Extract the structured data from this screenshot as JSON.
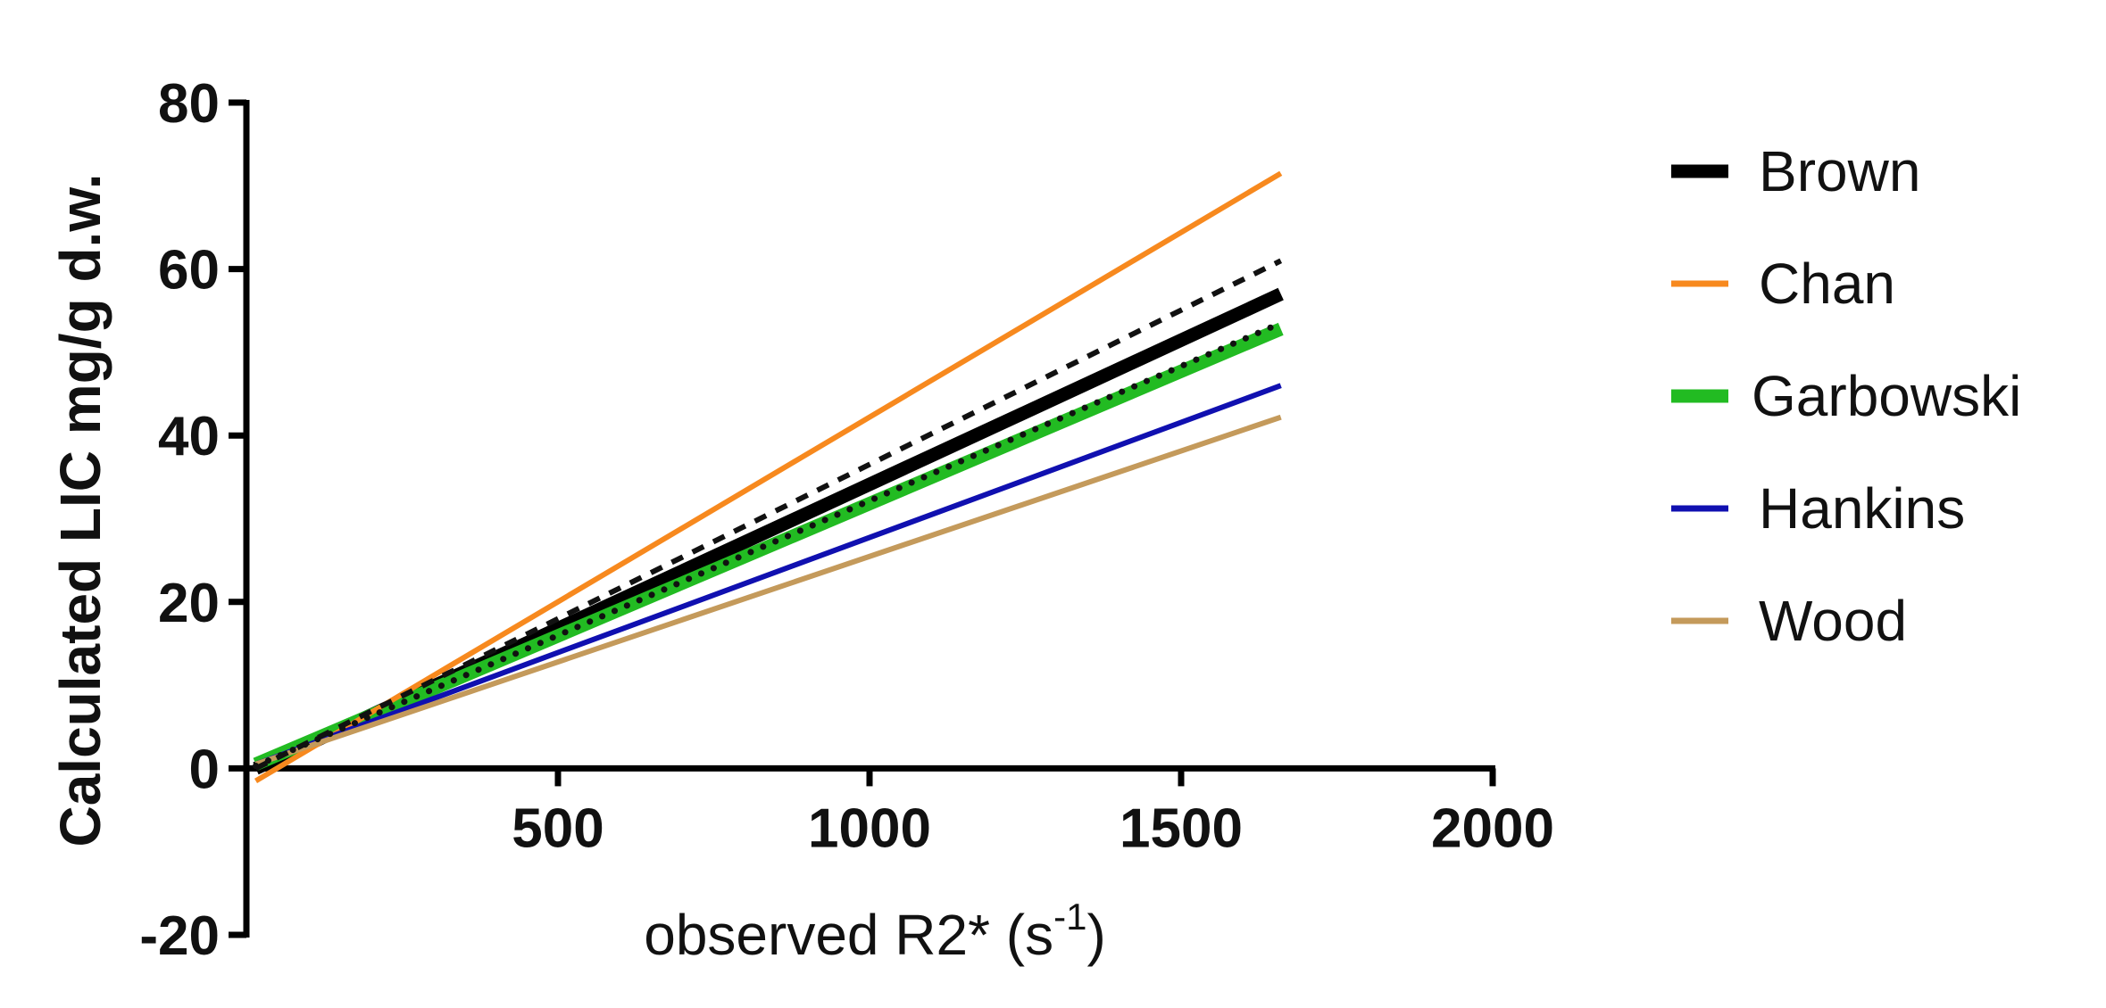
{
  "chart_data": {
    "type": "line",
    "title": "",
    "xlabel_main": "observed R2* (s",
    "xlabel_sup": "-1",
    "xlabel_close": ")",
    "ylabel": "Calculated LIC mg/g d.w.",
    "xlim": [
      0,
      2000
    ],
    "ylim": [
      -20,
      80
    ],
    "x_ticks": [
      "500",
      "1000",
      "1500",
      "2000"
    ],
    "y_ticks": [
      "80",
      "60",
      "40",
      "20",
      "0",
      "-20"
    ],
    "grid": false,
    "legend_position": "right",
    "series": [
      {
        "name": "Brown",
        "color": "#000000",
        "style": "thick",
        "x": [
          15,
          1660
        ],
        "y": [
          0.0,
          57.0
        ]
      },
      {
        "name": "Chan",
        "color": "#F7891E",
        "style": "solid",
        "x": [
          15,
          1660
        ],
        "y": [
          -1.5,
          71.5
        ]
      },
      {
        "name": "Garbowski",
        "color": "#22BB22",
        "style": "thick",
        "x": [
          15,
          1660
        ],
        "y": [
          0.5,
          52.8
        ]
      },
      {
        "name": "Hankins",
        "color": "#1010B0",
        "style": "solid",
        "x": [
          15,
          1660
        ],
        "y": [
          0.5,
          46.0
        ]
      },
      {
        "name": "Wood",
        "color": "#C49A5B",
        "style": "solid",
        "x": [
          15,
          1660
        ],
        "y": [
          0.5,
          42.2
        ]
      },
      {
        "name": "",
        "color": "#111111",
        "style": "dashed",
        "x": [
          15,
          1660
        ],
        "y": [
          0.0,
          61.0
        ]
      },
      {
        "name": "",
        "color": "#111111",
        "style": "dotted",
        "x": [
          15,
          1660
        ],
        "y": [
          0.3,
          53.5
        ]
      }
    ]
  }
}
